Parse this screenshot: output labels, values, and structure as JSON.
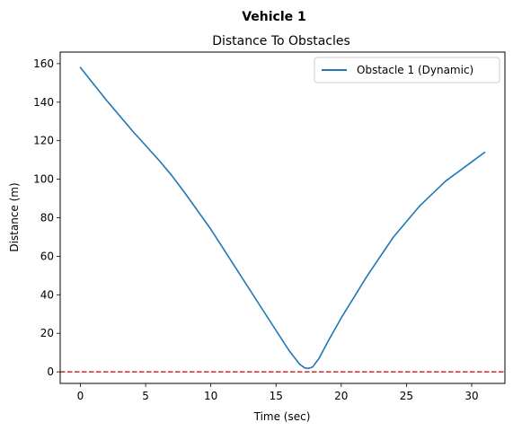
{
  "figure": {
    "suptitle": "Vehicle 1"
  },
  "chart_data": {
    "type": "line",
    "title": "Distance To Obstacles",
    "xlabel": "Time (sec)",
    "ylabel": "Distance (m)",
    "xlim": [
      -1.55,
      32.55
    ],
    "ylim": [
      -6,
      166
    ],
    "xticks": [
      0,
      5,
      10,
      15,
      20,
      25,
      30
    ],
    "yticks": [
      0,
      20,
      40,
      60,
      80,
      100,
      120,
      140,
      160
    ],
    "grid": false,
    "legend_position": "top-right",
    "series": [
      {
        "name": "Obstacle 1 (Dynamic)",
        "color": "#1f77b4",
        "style": "solid",
        "x": [
          0,
          2,
          4,
          6,
          7,
          8,
          10,
          12,
          14,
          16,
          16.8,
          17.2,
          17.5,
          17.8,
          18.3,
          19,
          20,
          22,
          24,
          26,
          28,
          30,
          31
        ],
        "y": [
          158,
          141,
          125,
          110,
          102,
          93,
          74,
          53,
          32,
          11,
          4,
          2,
          1.8,
          2.5,
          7,
          16,
          28,
          50,
          70,
          86,
          99,
          109,
          114
        ]
      }
    ],
    "reference_lines": [
      {
        "orientation": "horizontal",
        "y": 0,
        "color": "#d62728",
        "style": "dashed"
      }
    ]
  }
}
